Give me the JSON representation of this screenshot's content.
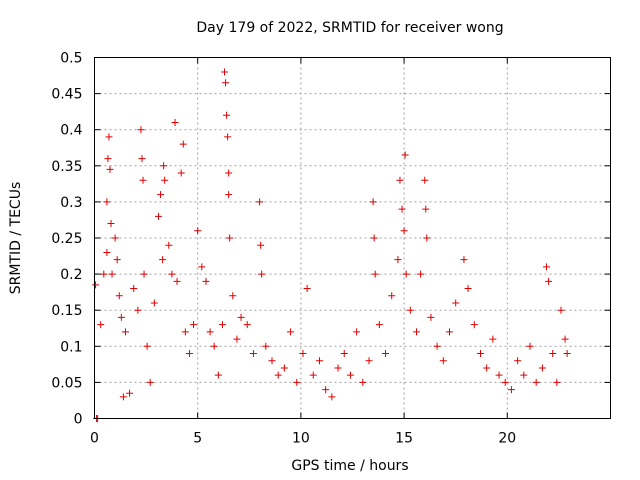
{
  "chart_data": {
    "type": "scatter",
    "title": "Day 179 of 2022, SRMTID for receiver wong",
    "xlabel": "GPS time / hours",
    "ylabel": "SRMTID / TECUs",
    "xlim": [
      0,
      25
    ],
    "ylim": [
      0,
      0.5
    ],
    "xticks": [
      0,
      5,
      10,
      15,
      20
    ],
    "yticks": [
      0,
      0.05,
      0.1,
      0.15,
      0.2,
      0.25,
      0.3,
      0.35,
      0.4,
      0.45,
      0.5
    ],
    "xtick_labels": [
      "0",
      "5",
      "10",
      "15",
      "20"
    ],
    "ytick_labels": [
      "0",
      "0.05",
      "0.1",
      "0.15",
      "0.2",
      "0.25",
      "0.3",
      "0.35",
      "0.4",
      "0.45",
      "0.5"
    ],
    "grid": true,
    "marker": "+",
    "color": "#e00000",
    "series": [
      {
        "name": "SRMTID",
        "points": [
          [
            0.1,
            0.0
          ],
          [
            0.15,
            0.0
          ],
          [
            0.05,
            0.185
          ],
          [
            0.3,
            0.13
          ],
          [
            0.45,
            0.2
          ],
          [
            0.6,
            0.23
          ],
          [
            0.6,
            0.3
          ],
          [
            0.65,
            0.36
          ],
          [
            0.7,
            0.39
          ],
          [
            0.75,
            0.345
          ],
          [
            0.8,
            0.27
          ],
          [
            0.85,
            0.2
          ],
          [
            1.0,
            0.25
          ],
          [
            1.1,
            0.22
          ],
          [
            1.2,
            0.17
          ],
          [
            1.3,
            0.14
          ],
          [
            1.4,
            0.03
          ],
          [
            1.5,
            0.12
          ],
          [
            1.7,
            0.035
          ],
          [
            1.9,
            0.18
          ],
          [
            2.1,
            0.15
          ],
          [
            2.25,
            0.4
          ],
          [
            2.3,
            0.36
          ],
          [
            2.35,
            0.33
          ],
          [
            2.4,
            0.2
          ],
          [
            2.55,
            0.1
          ],
          [
            2.7,
            0.05
          ],
          [
            2.9,
            0.16
          ],
          [
            3.1,
            0.28
          ],
          [
            3.2,
            0.31
          ],
          [
            3.3,
            0.22
          ],
          [
            3.35,
            0.35
          ],
          [
            3.4,
            0.33
          ],
          [
            3.6,
            0.24
          ],
          [
            3.75,
            0.2
          ],
          [
            3.9,
            0.41
          ],
          [
            4.0,
            0.19
          ],
          [
            4.2,
            0.34
          ],
          [
            4.3,
            0.38
          ],
          [
            4.4,
            0.12
          ],
          [
            4.6,
            0.09
          ],
          [
            4.8,
            0.13
          ],
          [
            5.0,
            0.26
          ],
          [
            5.2,
            0.21
          ],
          [
            5.4,
            0.19
          ],
          [
            5.6,
            0.12
          ],
          [
            5.8,
            0.1
          ],
          [
            6.0,
            0.06
          ],
          [
            6.2,
            0.13
          ],
          [
            6.3,
            0.48
          ],
          [
            6.35,
            0.465
          ],
          [
            6.4,
            0.42
          ],
          [
            6.45,
            0.39
          ],
          [
            6.5,
            0.34
          ],
          [
            6.5,
            0.31
          ],
          [
            6.55,
            0.25
          ],
          [
            6.7,
            0.17
          ],
          [
            6.9,
            0.11
          ],
          [
            7.1,
            0.14
          ],
          [
            7.4,
            0.13
          ],
          [
            7.7,
            0.09
          ],
          [
            8.0,
            0.3
          ],
          [
            8.05,
            0.24
          ],
          [
            8.1,
            0.2
          ],
          [
            8.3,
            0.1
          ],
          [
            8.6,
            0.08
          ],
          [
            8.9,
            0.06
          ],
          [
            9.2,
            0.07
          ],
          [
            9.5,
            0.12
          ],
          [
            9.8,
            0.05
          ],
          [
            10.1,
            0.09
          ],
          [
            10.3,
            0.18
          ],
          [
            10.6,
            0.06
          ],
          [
            10.9,
            0.08
          ],
          [
            11.2,
            0.04
          ],
          [
            11.5,
            0.03
          ],
          [
            11.8,
            0.07
          ],
          [
            12.1,
            0.09
          ],
          [
            12.4,
            0.06
          ],
          [
            12.7,
            0.12
          ],
          [
            13.0,
            0.05
          ],
          [
            13.3,
            0.08
          ],
          [
            13.5,
            0.3
          ],
          [
            13.55,
            0.25
          ],
          [
            13.6,
            0.2
          ],
          [
            13.8,
            0.13
          ],
          [
            14.1,
            0.09
          ],
          [
            14.4,
            0.17
          ],
          [
            14.7,
            0.22
          ],
          [
            14.8,
            0.33
          ],
          [
            14.9,
            0.29
          ],
          [
            15.0,
            0.26
          ],
          [
            15.05,
            0.365
          ],
          [
            15.1,
            0.2
          ],
          [
            15.3,
            0.15
          ],
          [
            15.6,
            0.12
          ],
          [
            15.8,
            0.2
          ],
          [
            16.0,
            0.33
          ],
          [
            16.05,
            0.29
          ],
          [
            16.1,
            0.25
          ],
          [
            16.3,
            0.14
          ],
          [
            16.6,
            0.1
          ],
          [
            16.9,
            0.08
          ],
          [
            17.2,
            0.12
          ],
          [
            17.5,
            0.16
          ],
          [
            17.9,
            0.22
          ],
          [
            18.1,
            0.18
          ],
          [
            18.4,
            0.13
          ],
          [
            18.7,
            0.09
          ],
          [
            19.0,
            0.07
          ],
          [
            19.3,
            0.11
          ],
          [
            19.6,
            0.06
          ],
          [
            19.9,
            0.05
          ],
          [
            20.2,
            0.04
          ],
          [
            20.5,
            0.08
          ],
          [
            20.8,
            0.06
          ],
          [
            21.1,
            0.1
          ],
          [
            21.4,
            0.05
          ],
          [
            21.7,
            0.07
          ],
          [
            21.9,
            0.21
          ],
          [
            22.0,
            0.19
          ],
          [
            22.2,
            0.09
          ],
          [
            22.4,
            0.05
          ],
          [
            22.6,
            0.15
          ],
          [
            22.8,
            0.11
          ],
          [
            22.9,
            0.09
          ]
        ]
      }
    ]
  }
}
